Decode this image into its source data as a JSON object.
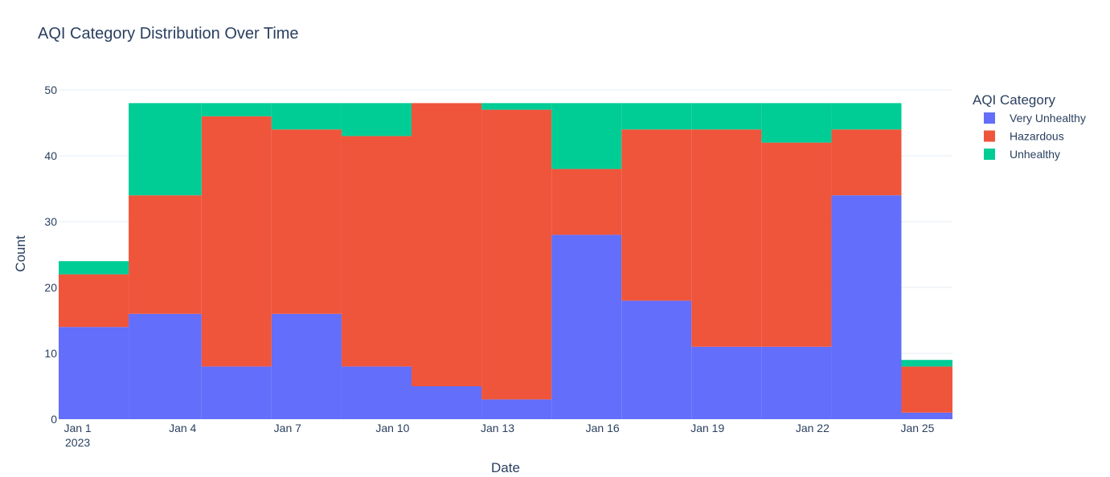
{
  "chart_data": {
    "type": "bar",
    "title": "AQI Category Distribution Over Time",
    "xlabel": "Date",
    "ylabel": "Count",
    "ylim": [
      0,
      50
    ],
    "y_ticks": [
      "0",
      "10",
      "20",
      "30",
      "40",
      "50"
    ],
    "x_ticks": [
      {
        "label": "Jan 1",
        "sublabel": "2023",
        "date": "2023-01-01"
      },
      {
        "label": "Jan 4",
        "sublabel": "",
        "date": "2023-01-04"
      },
      {
        "label": "Jan 7",
        "sublabel": "",
        "date": "2023-01-07"
      },
      {
        "label": "Jan 10",
        "sublabel": "",
        "date": "2023-01-10"
      },
      {
        "label": "Jan 13",
        "sublabel": "",
        "date": "2023-01-13"
      },
      {
        "label": "Jan 16",
        "sublabel": "",
        "date": "2023-01-16"
      },
      {
        "label": "Jan 19",
        "sublabel": "",
        "date": "2023-01-19"
      },
      {
        "label": "Jan 22",
        "sublabel": "",
        "date": "2023-01-22"
      },
      {
        "label": "Jan 25",
        "sublabel": "",
        "date": "2023-01-25"
      }
    ],
    "x_range": [
      "2022-12-31T11:00",
      "2023-01-26T00:00"
    ],
    "bins": [
      {
        "start": "2022-12-31T11:00",
        "end": "2023-01-02T11:00"
      },
      {
        "start": "2023-01-02T11:00",
        "end": "2023-01-04T13:00"
      },
      {
        "start": "2023-01-04T13:00",
        "end": "2023-01-06T13:00"
      },
      {
        "start": "2023-01-06T13:00",
        "end": "2023-01-08T13:00"
      },
      {
        "start": "2023-01-08T13:00",
        "end": "2023-01-10T13:00"
      },
      {
        "start": "2023-01-10T13:00",
        "end": "2023-01-12T13:00"
      },
      {
        "start": "2023-01-12T13:00",
        "end": "2023-01-14T13:00"
      },
      {
        "start": "2023-01-14T13:00",
        "end": "2023-01-16T13:00"
      },
      {
        "start": "2023-01-16T13:00",
        "end": "2023-01-18T13:00"
      },
      {
        "start": "2023-01-18T13:00",
        "end": "2023-01-20T13:00"
      },
      {
        "start": "2023-01-20T13:00",
        "end": "2023-01-22T13:00"
      },
      {
        "start": "2023-01-22T13:00",
        "end": "2023-01-24T13:00"
      },
      {
        "start": "2023-01-24T13:00",
        "end": "2023-01-26T00:00"
      }
    ],
    "barmode": "stack",
    "series": [
      {
        "name": "Very Unhealthy",
        "color": "#636efa",
        "values": [
          14,
          16,
          8,
          16,
          8,
          5,
          3,
          28,
          18,
          11,
          11,
          34,
          1
        ]
      },
      {
        "name": "Hazardous",
        "color": "#ef553b",
        "values": [
          8,
          18,
          38,
          28,
          35,
          43,
          44,
          10,
          26,
          33,
          31,
          10,
          7
        ]
      },
      {
        "name": "Unhealthy",
        "color": "#00cc96",
        "values": [
          2,
          14,
          2,
          4,
          5,
          0,
          1,
          10,
          4,
          4,
          6,
          4,
          1
        ]
      }
    ],
    "grid": true,
    "legend_title": "AQI Category",
    "legend_position": "top-right"
  }
}
